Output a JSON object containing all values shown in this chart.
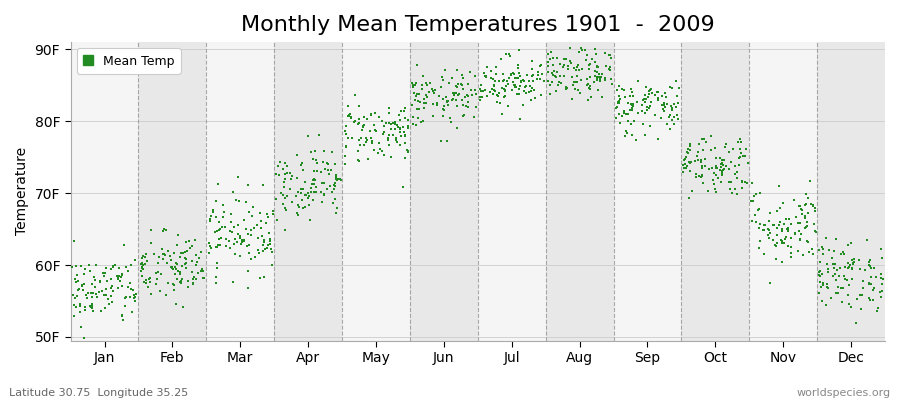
{
  "title": "Monthly Mean Temperatures 1901  -  2009",
  "ylabel": "Temperature",
  "xlabel_bottom": "Latitude 30.75  Longitude 35.25",
  "watermark": "worldspecies.org",
  "legend_label": "Mean Temp",
  "ytick_labels": [
    "50F",
    "60F",
    "70F",
    "80F",
    "90F"
  ],
  "ytick_values": [
    50,
    60,
    70,
    80,
    90
  ],
  "ylim": [
    49.5,
    91
  ],
  "months": [
    "Jan",
    "Feb",
    "Mar",
    "Apr",
    "May",
    "Jun",
    "Jul",
    "Aug",
    "Sep",
    "Oct",
    "Nov",
    "Dec"
  ],
  "month_means_F": [
    56.5,
    59.5,
    64.5,
    71.5,
    78.5,
    83.0,
    85.5,
    86.5,
    82.0,
    74.0,
    65.5,
    58.5
  ],
  "month_std_F": [
    2.5,
    2.5,
    2.8,
    2.5,
    2.2,
    2.0,
    1.8,
    1.8,
    2.0,
    2.2,
    2.8,
    2.5
  ],
  "n_years": 109,
  "dot_color": "#228B22",
  "dot_size": 4,
  "bg_color": "#ffffff",
  "bg_band_light": "#f5f5f5",
  "bg_band_dark": "#e8e8e8",
  "grid_color": "#888888",
  "title_fontsize": 16,
  "axis_fontsize": 10,
  "tick_fontsize": 10
}
